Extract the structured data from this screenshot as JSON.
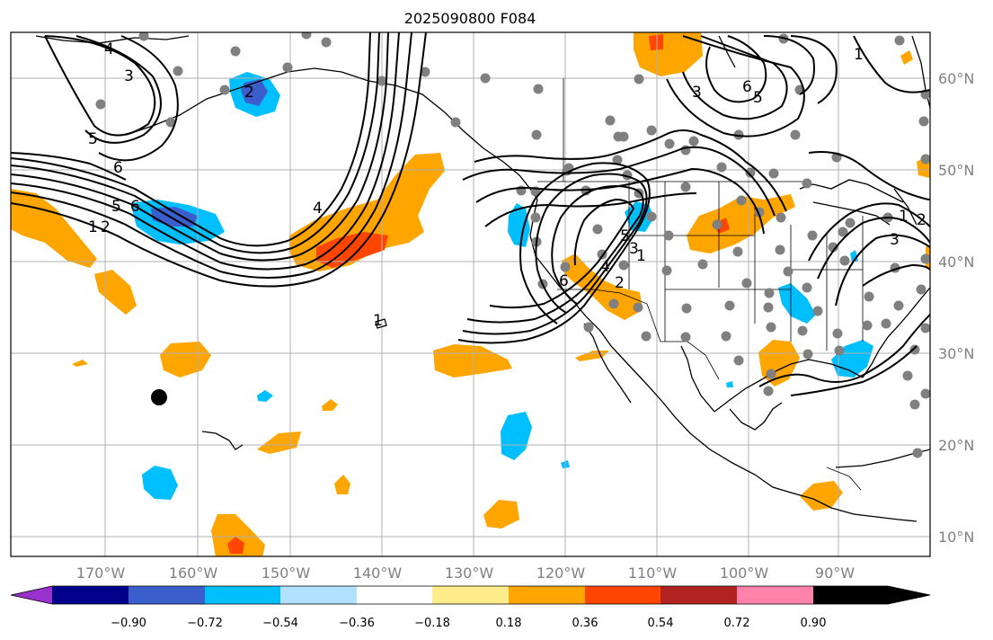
{
  "title": "2025090800 F084",
  "colors": {
    "neg_090": "#9932cc",
    "neg_072": "#00008b",
    "neg_054": "#3a5fcd",
    "neg_036": "#00bfff",
    "neg_018": "#b0e2ff",
    "neutral": "#ffffff",
    "pos_018": "#ffec8b",
    "pos_036": "#ffa500",
    "pos_054": "#ff4500",
    "pos_072": "#b22222",
    "pos_090": "#ff82ab",
    "station": "#808080",
    "grid": "#b0b0b0"
  },
  "longitude_labels": [
    "170°W",
    "160°W",
    "150°W",
    "140°W",
    "130°W",
    "120°W",
    "110°W",
    "100°W",
    "90°W"
  ],
  "latitude_labels": [
    "60°N",
    "50°N",
    "40°N",
    "30°N",
    "20°N",
    "10°N"
  ],
  "colorbar": {
    "tick_labels": [
      "−0.90",
      "−0.72",
      "−0.54",
      "−0.36",
      "−0.18",
      "0.18",
      "0.36",
      "0.54",
      "0.72",
      "0.90"
    ],
    "segment_colors": [
      "#9932cc",
      "#00008b",
      "#3a5fcd",
      "#00bfff",
      "#b0e2ff",
      "#ffffff",
      "#ffec8b",
      "#ffa500",
      "#ff4500",
      "#b22222",
      "#ff82ab"
    ]
  },
  "contour_labels": [
    "4",
    "3",
    "2",
    "5",
    "6",
    "5",
    "6",
    "1",
    "2",
    "4",
    "1",
    "6",
    "5",
    "4",
    "3",
    "2",
    "1",
    "3",
    "6",
    "5",
    "1",
    "3",
    "2",
    "1"
  ]
}
